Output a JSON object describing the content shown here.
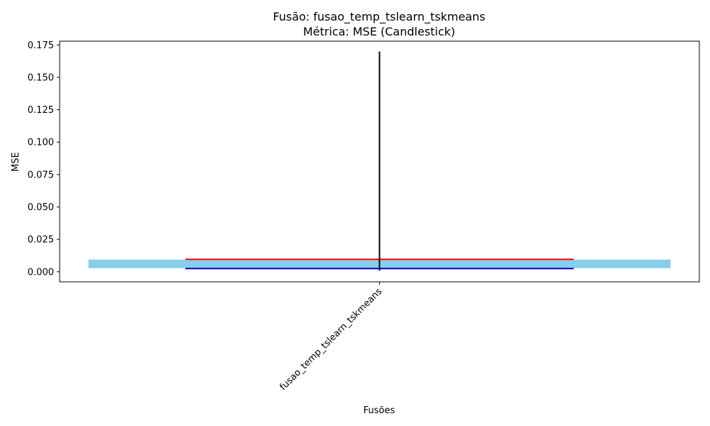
{
  "chart_data": {
    "type": "candlestick",
    "title_line1": "Fusão: fusao_temp_tslearn_tskmeans",
    "title_line2": "Métrica: MSE (Candlestick)",
    "xlabel": "Fusões",
    "ylabel": "MSE",
    "categories": [
      "fusao_temp_tslearn_tskmeans"
    ],
    "ylim": [
      -0.0078,
      0.1779
    ],
    "yticks": [
      0.0,
      0.025,
      0.05,
      0.075,
      0.1,
      0.125,
      0.15,
      0.175
    ],
    "ytick_labels": [
      "0.000",
      "0.025",
      "0.050",
      "0.075",
      "0.100",
      "0.125",
      "0.150",
      "0.175"
    ],
    "candles": [
      {
        "category": "fusao_temp_tslearn_tskmeans",
        "low": 0.0008,
        "high": 0.1699,
        "box_low": 0.0028,
        "box_high": 0.0094,
        "upper_line": 0.0096,
        "lower_line": 0.0025
      }
    ],
    "grid": false,
    "colors": {
      "box": "#87ceeb",
      "wick": "#000000",
      "upper_line": "#ff0000",
      "lower_line": "#0000cd"
    }
  }
}
